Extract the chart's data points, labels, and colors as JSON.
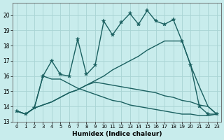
{
  "xlabel": "Humidex (Indice chaleur)",
  "xlim": [
    -0.5,
    23.5
  ],
  "ylim": [
    13.0,
    20.8
  ],
  "yticks": [
    13,
    14,
    15,
    16,
    17,
    18,
    19,
    20
  ],
  "xticks": [
    0,
    1,
    2,
    3,
    4,
    5,
    6,
    7,
    8,
    9,
    10,
    11,
    12,
    13,
    14,
    15,
    16,
    17,
    18,
    19,
    20,
    21,
    22,
    23
  ],
  "bg_color": "#c8ecec",
  "grid_color": "#a8d4d4",
  "line_color": "#1a6060",
  "line1_x": [
    0,
    1,
    2,
    3,
    4,
    5,
    6,
    7,
    8,
    9,
    10,
    11,
    12,
    13,
    14,
    15,
    16,
    17,
    18,
    19,
    20,
    21,
    22,
    23
  ],
  "line1_y": [
    13.7,
    13.5,
    13.9,
    16.0,
    17.0,
    16.1,
    16.0,
    18.4,
    16.1,
    16.7,
    19.6,
    18.7,
    19.5,
    20.1,
    19.4,
    20.3,
    19.6,
    19.4,
    19.7,
    18.3,
    16.7,
    14.0,
    13.5,
    13.5
  ],
  "line2_x": [
    0,
    1,
    2,
    3,
    4,
    5,
    6,
    7,
    8,
    9,
    10,
    11,
    12,
    13,
    14,
    15,
    16,
    17,
    18,
    19,
    20,
    21,
    22,
    23
  ],
  "line2_y": [
    13.7,
    13.5,
    13.9,
    16.0,
    15.8,
    15.8,
    15.5,
    15.2,
    15.0,
    14.8,
    14.6,
    14.4,
    14.3,
    14.1,
    14.0,
    13.9,
    13.8,
    13.7,
    13.6,
    13.5,
    13.5,
    13.4,
    13.4,
    13.5
  ],
  "line3_x": [
    0,
    1,
    2,
    3,
    4,
    5,
    6,
    7,
    8,
    9,
    10,
    11,
    12,
    13,
    14,
    15,
    16,
    17,
    18,
    19,
    20,
    21,
    22,
    23
  ],
  "line3_y": [
    13.7,
    13.5,
    13.9,
    14.1,
    14.3,
    14.6,
    14.9,
    15.1,
    15.4,
    15.6,
    15.5,
    15.4,
    15.3,
    15.2,
    15.1,
    15.0,
    14.9,
    14.7,
    14.6,
    14.4,
    14.3,
    14.1,
    14.0,
    13.5
  ],
  "line4_x": [
    0,
    1,
    2,
    3,
    4,
    5,
    6,
    7,
    8,
    9,
    10,
    11,
    12,
    13,
    14,
    15,
    16,
    17,
    18,
    19,
    20,
    21,
    22,
    23
  ],
  "line4_y": [
    13.7,
    13.5,
    13.9,
    14.1,
    14.3,
    14.6,
    14.9,
    15.1,
    15.4,
    15.7,
    16.0,
    16.4,
    16.7,
    17.0,
    17.3,
    17.7,
    18.0,
    18.3,
    18.3,
    18.3,
    16.7,
    15.3,
    14.0,
    13.5
  ]
}
